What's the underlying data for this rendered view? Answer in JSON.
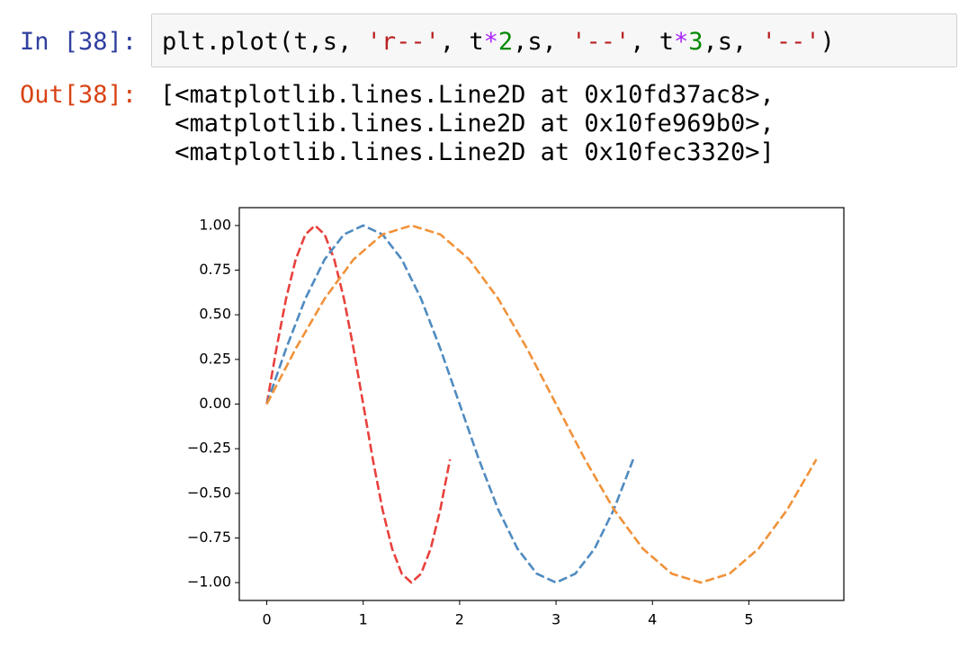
{
  "input": {
    "prompt": "In [38]:",
    "code_tokens": [
      "plt.plot(t,s, ",
      "'r--'",
      ", t",
      "*",
      "2",
      ",s, ",
      "'--'",
      ", t",
      "*",
      "3",
      ",s, ",
      "'--'",
      ")"
    ]
  },
  "output": {
    "prompt": "Out[38]:",
    "lines": [
      "[<matplotlib.lines.Line2D at 0x10fd37ac8>,",
      " <matplotlib.lines.Line2D at 0x10fe969b0>,",
      " <matplotlib.lines.Line2D at 0x10fec3320>]"
    ]
  },
  "chart_data": {
    "type": "line",
    "series": [
      {
        "color": "#e8413d",
        "x": [
          0,
          0.1,
          0.2,
          0.3,
          0.4,
          0.5,
          0.6,
          0.7,
          0.8,
          0.9,
          1,
          1.1,
          1.2,
          1.3,
          1.4,
          1.5,
          1.6,
          1.7,
          1.8,
          1.9
        ],
        "values": [
          0,
          0.31,
          0.59,
          0.81,
          0.95,
          1,
          0.95,
          0.81,
          0.59,
          0.31,
          0,
          -0.31,
          -0.59,
          -0.81,
          -0.95,
          -1,
          -0.95,
          -0.81,
          -0.59,
          -0.31
        ]
      },
      {
        "color": "#4f8bc0",
        "x": [
          0,
          0.2,
          0.4,
          0.6,
          0.8,
          1,
          1.2,
          1.4,
          1.6,
          1.8,
          2,
          2.2,
          2.4,
          2.6,
          2.8,
          3,
          3.2,
          3.4,
          3.6,
          3.8
        ],
        "values": [
          0,
          0.31,
          0.59,
          0.81,
          0.95,
          1,
          0.95,
          0.81,
          0.59,
          0.31,
          0,
          -0.31,
          -0.59,
          -0.81,
          -0.95,
          -1,
          -0.95,
          -0.81,
          -0.59,
          -0.31
        ]
      },
      {
        "color": "#f0923a",
        "x": [
          0,
          0.3,
          0.6,
          0.9,
          1.2,
          1.5,
          1.8,
          2.1,
          2.4,
          2.7,
          3,
          3.3,
          3.6,
          3.9,
          4.2,
          4.5,
          4.8,
          5.1,
          5.4,
          5.7
        ],
        "values": [
          0,
          0.31,
          0.59,
          0.81,
          0.95,
          1,
          0.95,
          0.81,
          0.59,
          0.31,
          0,
          -0.31,
          -0.59,
          -0.81,
          -0.95,
          -1,
          -0.95,
          -0.81,
          -0.59,
          -0.31
        ]
      }
    ],
    "line_style": "dashed",
    "xlim": [
      -0.285,
      5.985
    ],
    "ylim": [
      -1.1,
      1.1
    ],
    "xticks": [
      0,
      1,
      2,
      3,
      4,
      5
    ],
    "yticks": [
      {
        "value": 1,
        "label": "1.00"
      },
      {
        "value": 0.75,
        "label": "0.75"
      },
      {
        "value": 0.5,
        "label": "0.50"
      },
      {
        "value": 0.25,
        "label": "0.25"
      },
      {
        "value": 0,
        "label": "0.00"
      },
      {
        "value": -0.25,
        "label": "−0.25"
      },
      {
        "value": -0.5,
        "label": "−0.50"
      },
      {
        "value": -0.75,
        "label": "−0.75"
      },
      {
        "value": -1,
        "label": "−1.00"
      }
    ],
    "grid": false
  }
}
